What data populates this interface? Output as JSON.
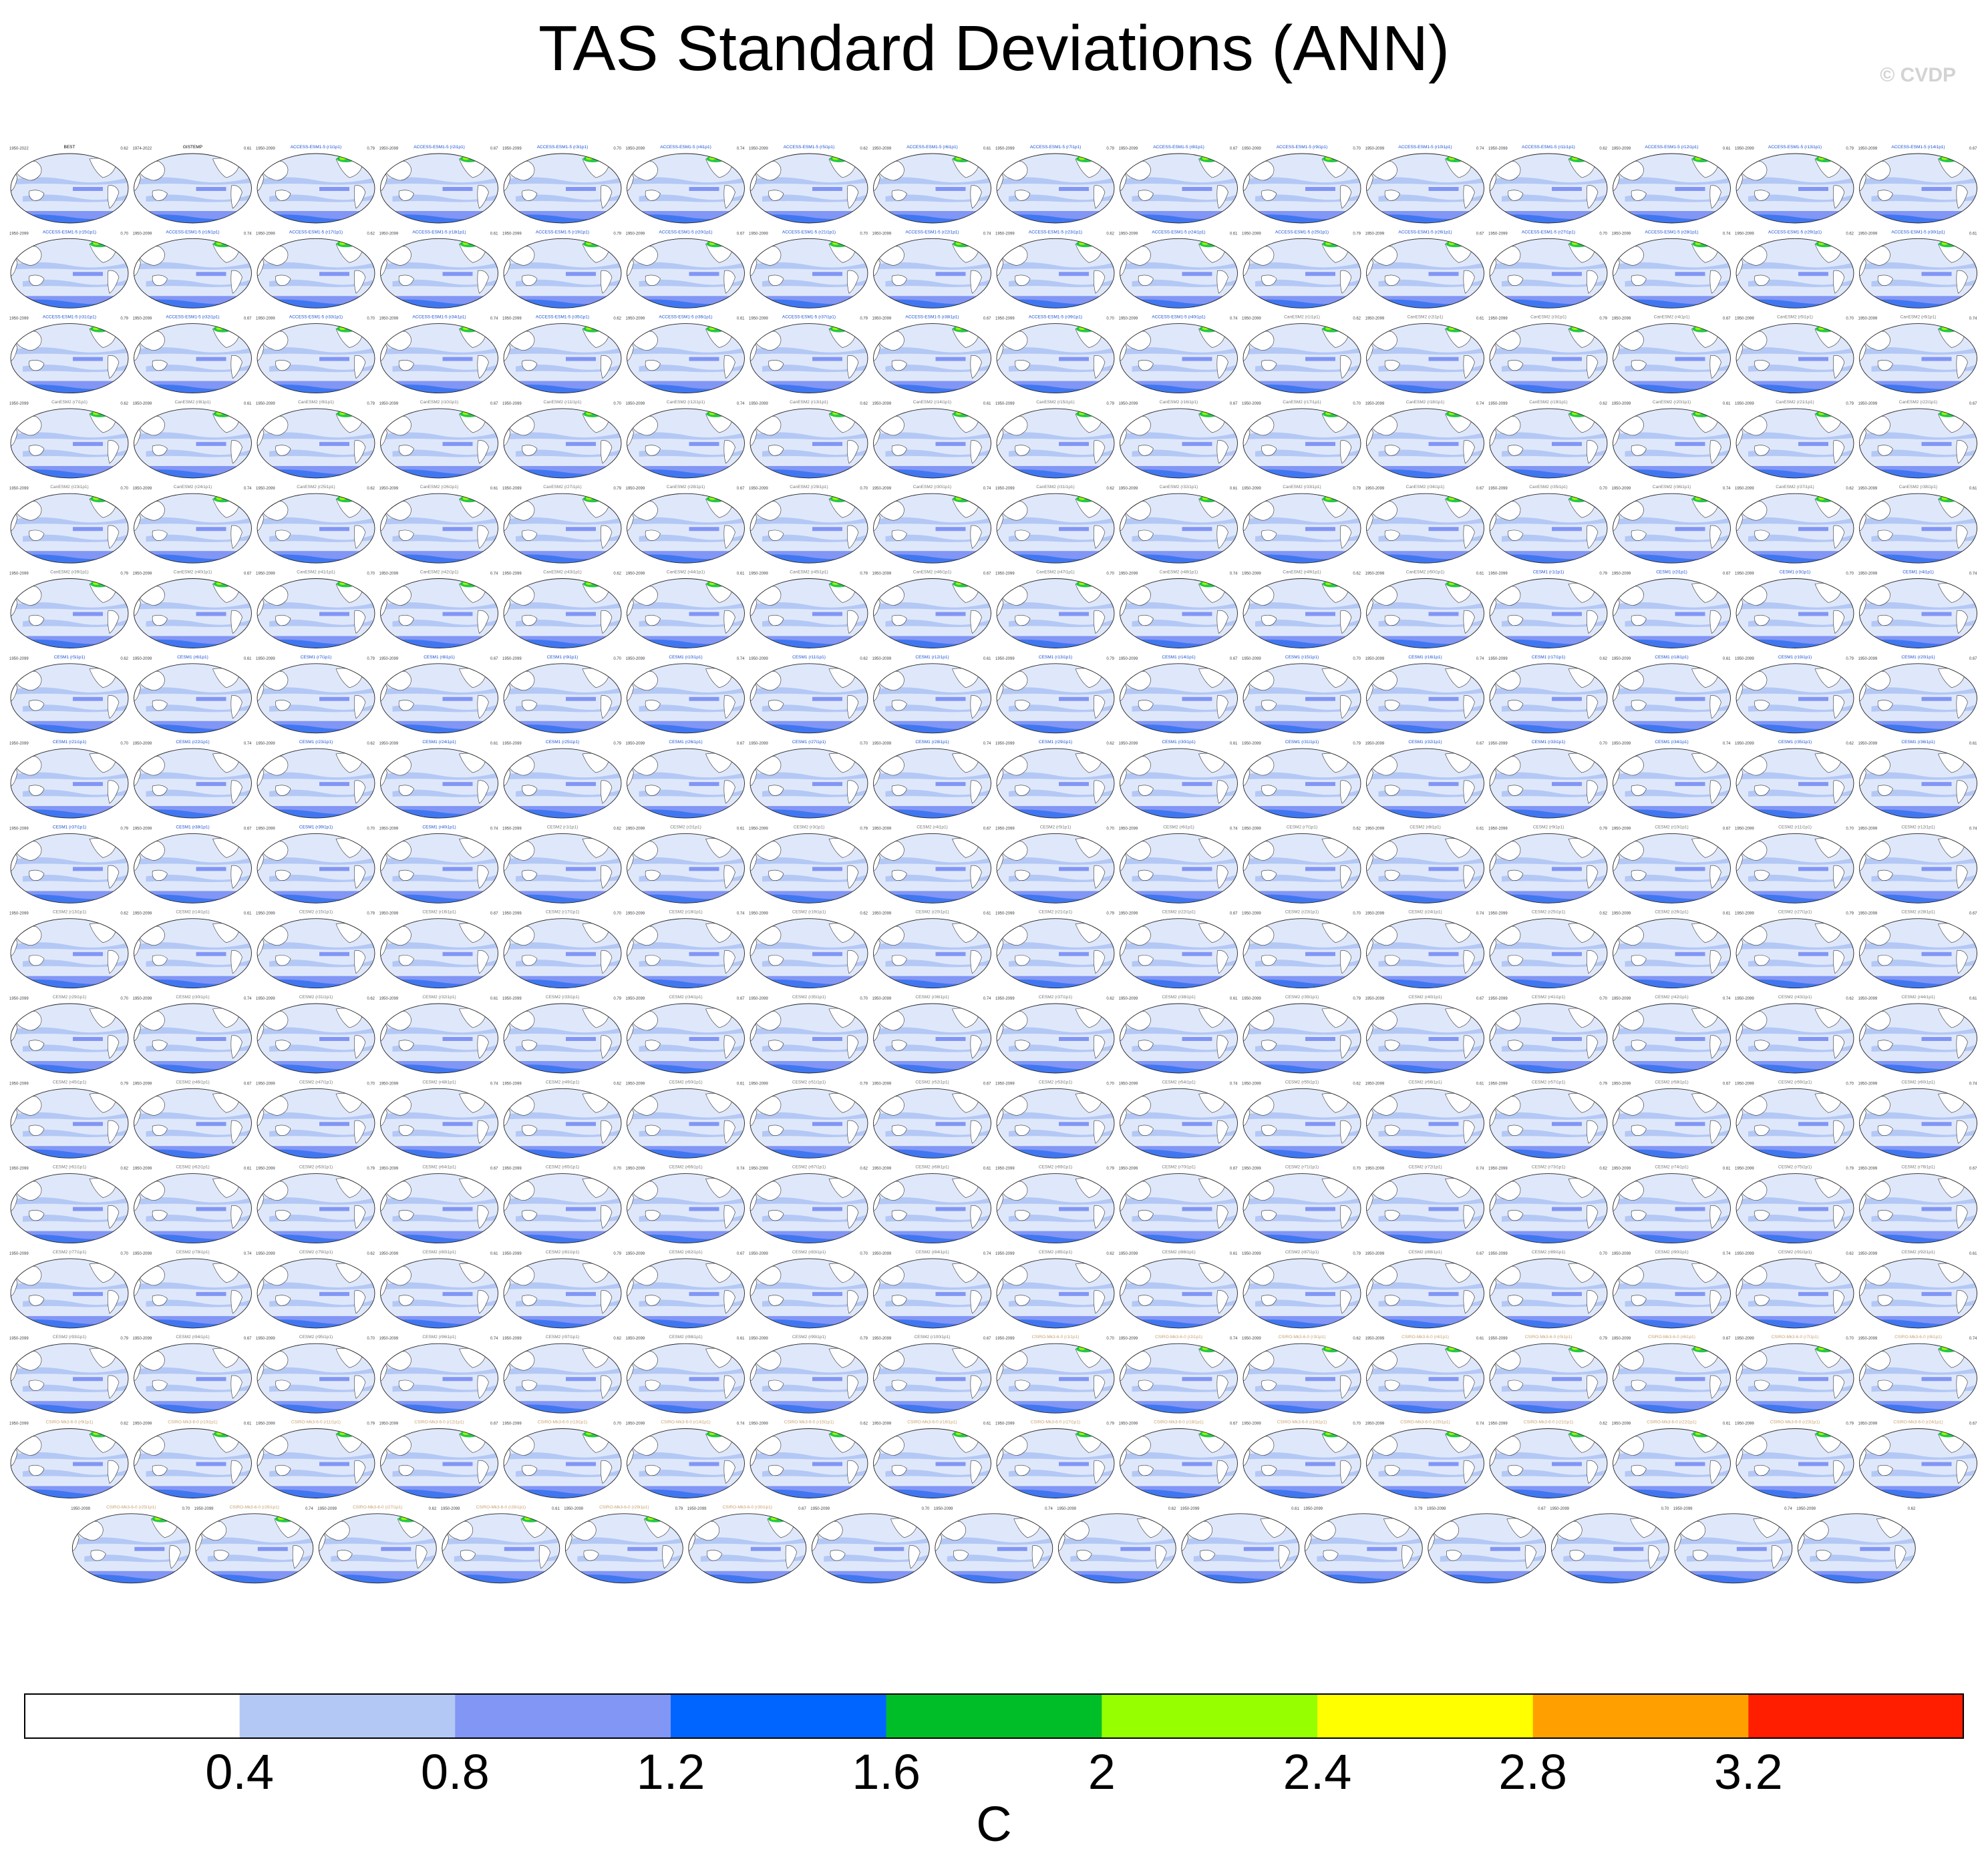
{
  "header": {
    "title": "TAS Standard Deviations (ANN)",
    "watermark": "© CVDP"
  },
  "colorbar": {
    "unit": "C",
    "tick_labels": [
      "0.4",
      "0.8",
      "1.2",
      "1.6",
      "2",
      "2.4",
      "2.8",
      "3.2"
    ],
    "colors": [
      "#ffffff",
      "#b4c8f5",
      "#8296f5",
      "#0064ff",
      "#00be28",
      "#96ff00",
      "#ffff00",
      "#ffa000",
      "#ff1e00"
    ],
    "levels": [
      0.4,
      0.8,
      1.2,
      1.6,
      2.0,
      2.4,
      2.8,
      3.2
    ]
  },
  "panel_colors": {
    "ocean": "#dfe8fb",
    "band_light": "#b4c8f5",
    "band_mid": "#8296f5",
    "band_dark": "#2f6ff0",
    "land": "#ffffff",
    "coast": "#333333",
    "green": "#00be28",
    "lime": "#96ff00",
    "title_blue": "#1a4fd0",
    "title_gray": "#777777",
    "title_tan": "#c8a070",
    "title_black": "#000000"
  },
  "chart_data": {
    "type": "heatmap",
    "title": "TAS Standard Deviations (ANN)",
    "colorbar_unit": "C",
    "colorbar_levels": [
      0.4,
      0.8,
      1.2,
      1.6,
      2.0,
      2.4,
      2.8,
      3.2
    ],
    "grid": {
      "rows": 17,
      "columns": 16,
      "last_row_panels": 15
    },
    "panel_period": "1950-2099",
    "first_panels": [
      {
        "title": "BEST",
        "period": "1950-2022"
      },
      {
        "title": "GISTEMP",
        "period": "1974-2022"
      }
    ],
    "model_families": [
      {
        "name": "ACCESS-ESM1-5",
        "members": 40,
        "title_color": "blue"
      },
      {
        "name": "CanESM2",
        "members": 50,
        "title_color": "gray"
      },
      {
        "name": "CESM1",
        "members": 40,
        "title_color": "blue"
      },
      {
        "name": "CESM2",
        "members": 100,
        "title_color": "gray"
      },
      {
        "name": "CSIRO-Mk3-6-0",
        "members": 30,
        "title_color": "tan"
      }
    ],
    "panel_mean_examples": [
      "0.62",
      "0.61",
      "0.79",
      "0.67",
      "0.70",
      "0.74"
    ]
  }
}
